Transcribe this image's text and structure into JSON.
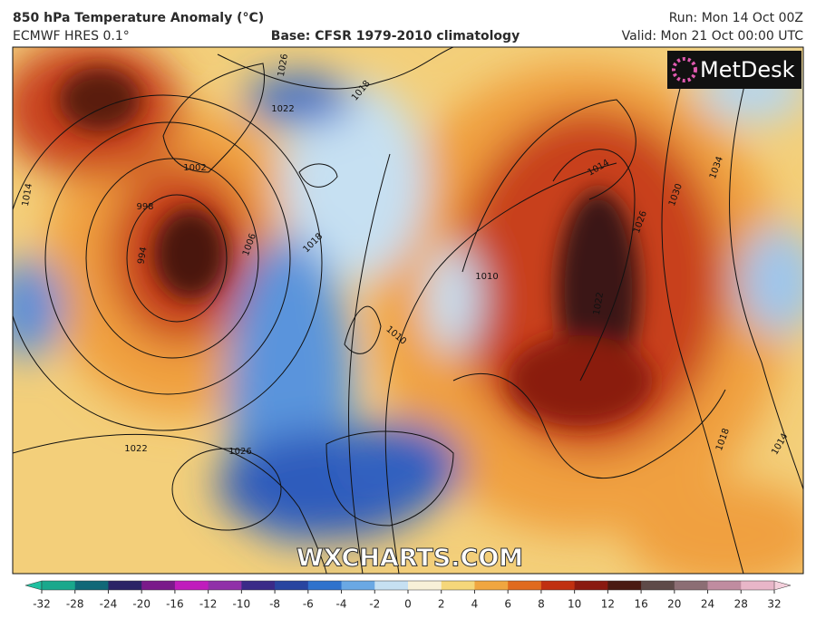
{
  "header": {
    "title": "850 hPa Temperature Anomaly (°C)",
    "model": "ECMWF HRES 0.1°",
    "base": "Base: CFSR 1979-2010 climatology",
    "run": "Run: Mon 14 Oct 00Z",
    "valid": "Valid: Mon 21 Oct 00:00 UTC"
  },
  "map": {
    "logo": "MetDesk",
    "watermark": "WXCHARTS.COM",
    "isobar_labels": [
      1026,
      1018,
      1022,
      1002,
      998,
      994,
      1006,
      1018,
      1014,
      1022,
      1026,
      1010,
      1010,
      1022,
      1014,
      1030,
      1034,
      1026,
      1018,
      1014
    ]
  },
  "colorbar": {
    "ticks": [
      -32,
      -28,
      -24,
      -20,
      -16,
      -12,
      -10,
      -8,
      -6,
      -4,
      -2,
      0,
      2,
      4,
      6,
      8,
      10,
      12,
      16,
      20,
      24,
      28,
      32
    ],
    "colors": [
      "#1aa88c",
      "#106878",
      "#2a2466",
      "#7a1a8a",
      "#c01cbc",
      "#9030a8",
      "#3a2a88",
      "#2845a0",
      "#2f72cc",
      "#6aa8e4",
      "#c6e0f2",
      "#f7f0d8",
      "#f5d77a",
      "#f0a640",
      "#e06a1e",
      "#c03010",
      "#8a1a10",
      "#4a1a12",
      "#5e4a48",
      "#8c6e74",
      "#c08ca0",
      "#e8b6c8"
    ],
    "under_color": "#20c0a0",
    "over_color": "#f4d0dc"
  }
}
